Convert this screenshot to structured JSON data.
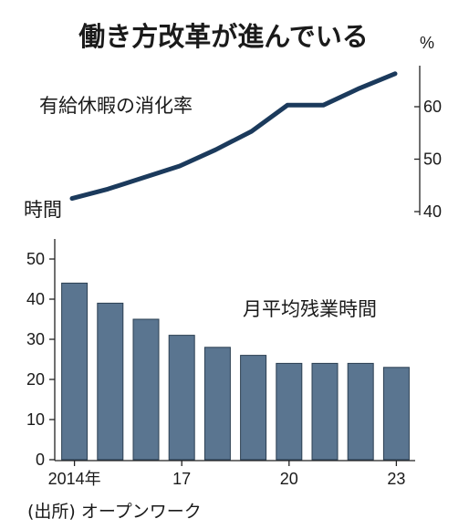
{
  "title": "働き方改革が進んでいる",
  "source": "(出所) オープンワーク",
  "colors": {
    "line": "#1b3a5c",
    "bar": "#5a7590",
    "bar_edge": "#2b3f52",
    "axis": "#222222"
  },
  "chart_data": [
    {
      "type": "line",
      "label": "有給休暇の消化率",
      "unit": "%",
      "y_axis_side": "right",
      "ylim": [
        40,
        67
      ],
      "yticks": [
        40,
        50,
        60
      ],
      "ytick_labels": [
        "40",
        "50",
        "60"
      ],
      "x": [
        2014,
        2015,
        2016,
        2017,
        2018,
        2019,
        2020,
        2021,
        2022,
        2023
      ],
      "values": [
        42.5,
        44.3,
        46.5,
        48.7,
        51.8,
        55.3,
        60.3,
        60.3,
        63.5,
        66.3
      ]
    },
    {
      "type": "bar",
      "label": "月平均残業時間",
      "unit_label": "時間",
      "y_axis_side": "left",
      "ylim": [
        0,
        55
      ],
      "yticks": [
        0,
        10,
        20,
        30,
        40,
        50
      ],
      "ytick_labels": [
        "0",
        "10",
        "20",
        "30",
        "40",
        "50"
      ],
      "categories": [
        2014,
        2015,
        2016,
        2017,
        2018,
        2019,
        2020,
        2021,
        2022,
        2023
      ],
      "values": [
        44,
        39,
        35,
        31,
        28,
        26,
        24,
        24,
        24,
        23
      ],
      "xticks": [
        2014,
        2017,
        2020,
        2023
      ],
      "xtick_labels": [
        "2014年",
        "17",
        "20",
        "23"
      ]
    }
  ]
}
